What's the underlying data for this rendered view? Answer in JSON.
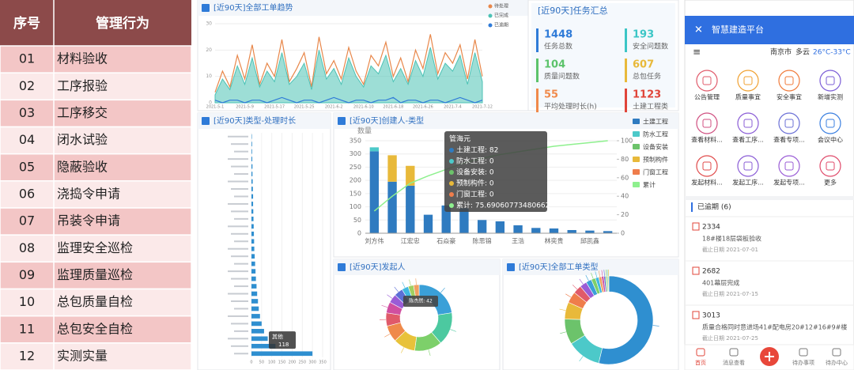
{
  "table": {
    "headers": [
      "序号",
      "管理行为"
    ],
    "rows": [
      [
        "01",
        "材料验收"
      ],
      [
        "02",
        "工序报验"
      ],
      [
        "03",
        "工序移交"
      ],
      [
        "04",
        "闭水试验"
      ],
      [
        "05",
        "隐蔽验收"
      ],
      [
        "06",
        "浇捣令申请"
      ],
      [
        "07",
        "吊装令申请"
      ],
      [
        "08",
        "监理安全巡检"
      ],
      [
        "09",
        "监理质量巡检"
      ],
      [
        "10",
        "总包质量自检"
      ],
      [
        "11",
        "总包安全自检"
      ],
      [
        "12",
        "实测实量"
      ]
    ]
  },
  "chart_data": [
    {
      "type": "line",
      "title": "[近90天]全部工单趋势",
      "categories": [
        "2021-5-1",
        null,
        null,
        null,
        "2021-5-9",
        null,
        null,
        null,
        "2021-5-17",
        null,
        null,
        null,
        "2021-5-25",
        null,
        null,
        null,
        "2021-6-2",
        null,
        null,
        null,
        "2021-6-10",
        null,
        null,
        null,
        "2021-6-18",
        null,
        null,
        null,
        "2021-6-26",
        null,
        null,
        null,
        "2021-7-4",
        null,
        null,
        null,
        "2021-7-12"
      ],
      "ylim": [
        0,
        30
      ],
      "yticks": [
        0,
        10,
        20,
        30
      ],
      "series": [
        {
          "name": "待处理",
          "color": "#e8874a",
          "values": [
            4,
            12,
            6,
            18,
            9,
            22,
            7,
            15,
            10,
            24,
            8,
            13,
            19,
            6,
            25,
            11,
            16,
            9,
            21,
            12,
            7,
            18,
            14,
            23,
            10,
            17,
            8,
            20,
            13,
            26,
            11,
            19,
            15,
            22,
            9,
            24,
            10
          ]
        },
        {
          "name": "已完成",
          "color": "#4cc2b5",
          "area": true,
          "values": [
            3,
            9,
            5,
            14,
            7,
            17,
            6,
            12,
            8,
            19,
            7,
            10,
            15,
            5,
            20,
            9,
            13,
            7,
            17,
            10,
            6,
            14,
            11,
            18,
            8,
            13,
            7,
            16,
            10,
            21,
            9,
            15,
            12,
            18,
            7,
            19,
            8
          ]
        },
        {
          "name": "已逾期",
          "color": "#2f7bd8",
          "values": [
            1,
            0,
            1,
            1,
            0,
            1,
            1,
            0,
            1,
            2,
            1,
            0,
            1,
            1,
            0,
            1,
            2,
            1,
            0,
            1,
            1,
            0,
            1,
            1,
            2,
            0,
            1,
            1,
            0,
            1,
            1,
            0,
            1,
            2,
            1,
            0,
            1
          ]
        }
      ]
    },
    {
      "type": "hbar",
      "title": "[近90天]类型-处理时长",
      "color": "#2f8fd0",
      "categories": [
        null,
        null,
        null,
        null,
        null,
        null,
        null,
        null,
        null,
        null,
        null,
        null,
        null,
        null,
        null,
        null,
        null,
        null,
        null,
        null,
        null,
        null,
        null,
        null,
        null,
        null,
        null,
        null,
        null,
        null
      ],
      "values": [
        2,
        3,
        3,
        4,
        5,
        5,
        6,
        7,
        8,
        8,
        9,
        10,
        11,
        12,
        13,
        14,
        16,
        18,
        20,
        22,
        25,
        28,
        32,
        36,
        42,
        50,
        62,
        80,
        118,
        300
      ],
      "xlim": [
        0,
        350
      ],
      "xticks": [
        0,
        50,
        100,
        150,
        200,
        250,
        300,
        350
      ],
      "tooltip": {
        "name": "其他",
        "value": 118,
        "index": 28
      }
    },
    {
      "type": "combo",
      "title": "[近90天]创建人-类型",
      "y_label": "数量",
      "categories": [
        "刘方伟",
        null,
        "江宏忠",
        null,
        "石焱豪",
        null,
        "陈思锦",
        null,
        "王浩",
        null,
        "林奕贵",
        null,
        "邱凯鑫",
        null
      ],
      "ylim": [
        0,
        350
      ],
      "yticks": [
        0,
        50,
        100,
        150,
        200,
        250,
        300,
        350
      ],
      "y2lim": [
        0,
        100
      ],
      "y2ticks": [
        0,
        20,
        40,
        60,
        80,
        100
      ],
      "series": [
        {
          "name": "土建工程",
          "color": "#2f7bc0",
          "values": [
            310,
            195,
            180,
            70,
            105,
            95,
            50,
            45,
            30,
            20,
            18,
            12,
            10,
            8
          ]
        },
        {
          "name": "防水工程",
          "color": "#4cc9c9",
          "values": [
            15,
            0,
            0,
            0,
            0,
            0,
            0,
            0,
            0,
            0,
            0,
            0,
            0,
            0
          ]
        },
        {
          "name": "设备安装",
          "color": "#6cc36b",
          "values": [
            0,
            0,
            0,
            0,
            0,
            0,
            0,
            0,
            0,
            0,
            0,
            0,
            0,
            0
          ]
        },
        {
          "name": "预制构件",
          "color": "#e8b93a",
          "values": [
            0,
            100,
            75,
            0,
            0,
            0,
            0,
            0,
            0,
            0,
            0,
            0,
            0,
            0
          ]
        },
        {
          "name": "门窗工程",
          "color": "#ef7d4b",
          "values": [
            0,
            0,
            0,
            0,
            0,
            0,
            0,
            0,
            0,
            0,
            0,
            0,
            0,
            0
          ]
        },
        {
          "name": "累计",
          "color": "#8ef08e",
          "axis": "y2",
          "values": [
            24,
            40,
            54,
            62,
            69,
            76,
            81,
            85,
            88,
            91,
            94,
            96,
            98,
            100
          ]
        }
      ],
      "tooltip": {
        "title": "管海元",
        "lines": [
          "土建工程: 82",
          "防水工程: 0",
          "设备安装: 0",
          "预制构件: 0",
          "门窗工程: 0",
          "累计: 75.69060773480662"
        ]
      }
    },
    {
      "type": "pie",
      "title": "[近90天]发起人",
      "values": [
        42,
        30,
        25,
        20,
        15,
        12,
        10,
        8,
        8,
        6,
        5,
        5
      ],
      "colors": [
        "#3aa0d8",
        "#4cc9a0",
        "#7dd06a",
        "#e8c23a",
        "#ef8a4b",
        "#e05a6a",
        "#d04fa0",
        "#9a5cd6",
        "#5c6fd6",
        "#40b8e0",
        "#a0d060",
        "#f0a060"
      ],
      "tooltip": "陈杰然: 42"
    },
    {
      "type": "pie",
      "title": "[近90天]全部工单类型",
      "values": [
        520,
        120,
        90,
        60,
        40,
        30,
        25,
        20,
        15,
        12,
        10,
        8,
        6,
        5,
        4,
        3
      ],
      "colors": [
        "#2f8fd0",
        "#4cc9c9",
        "#6cc36b",
        "#e8b93a",
        "#ef7d4b",
        "#e05a6a",
        "#9a5cd6",
        "#3aa0d8",
        "#7dd06a",
        "#40b8e0",
        "#f0a060",
        "#d04fa0",
        "#5c6fd6",
        "#a0d060",
        "#4cc9a0",
        "#e8c23a"
      ]
    }
  ],
  "summary": {
    "title": "[近90天]任务汇总",
    "items": [
      {
        "value": "1448",
        "label": "任务总数",
        "color": "#2f7bd8"
      },
      {
        "value": "193",
        "label": "安全问题数",
        "color": "#3cc6c6"
      },
      {
        "value": "104",
        "label": "质量问题数",
        "color": "#5cc36b"
      },
      {
        "value": "607",
        "label": "总包任务",
        "color": "#e8b93a"
      },
      {
        "value": "55",
        "label": "平均处理时长(h)",
        "color": "#f08a4b"
      },
      {
        "value": "1123",
        "label": "土建工程类",
        "color": "#e0453a"
      }
    ]
  },
  "phone": {
    "title": "智慧建造平台",
    "city": "南京市",
    "weather": "多云",
    "temp": "26°C-33°C",
    "icons": [
      "公告管理",
      "质量事宜",
      "安全事宜",
      "新增实测",
      "查看材料...",
      "查看工序...",
      "查看专项...",
      "会议中心",
      "发起材料...",
      "发起工序...",
      "发起专项...",
      "更多"
    ],
    "overdue": "已逾期 (6)",
    "items": [
      {
        "id": "2334",
        "text": "18#楼18层袋板验收",
        "due": "截止日期 2021-07-01"
      },
      {
        "id": "2682",
        "text": "401幕层完成",
        "due": "截止日期 2021-07-15"
      },
      {
        "id": "3013",
        "text": "质量合格同时意进场41#配电房20#12#16#9#楼",
        "due": "截止日期 2021-07-25"
      }
    ],
    "nav": [
      "首页",
      "消息查看",
      "待办事项",
      "待办中心"
    ]
  }
}
